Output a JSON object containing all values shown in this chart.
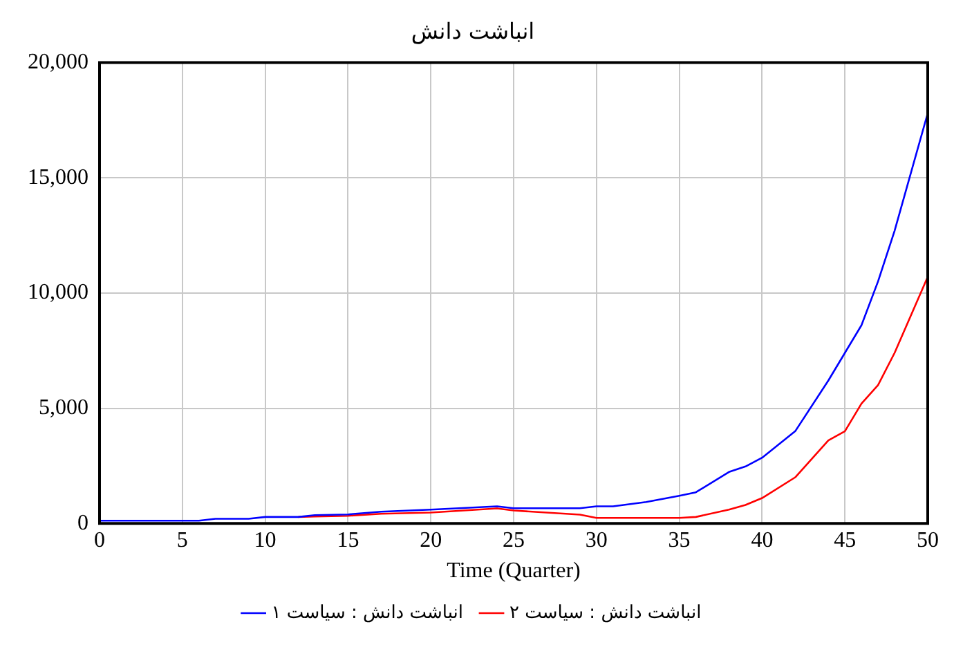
{
  "chart_data": {
    "type": "line",
    "title": "انباشت دانش",
    "xlabel": "Time (Quarter)",
    "x": [
      0,
      6,
      7,
      9,
      10,
      12,
      13,
      15,
      17,
      20,
      24,
      25,
      29,
      30,
      31,
      33,
      35,
      36,
      38,
      39,
      40,
      42,
      44,
      45,
      46,
      47,
      48,
      50
    ],
    "series": [
      {
        "name": "انباشت دانش : سیاست ۱",
        "color": "#0000ff",
        "values": [
          120,
          120,
          200,
          200,
          280,
          280,
          360,
          390,
          510,
          600,
          740,
          660,
          660,
          740,
          740,
          930,
          1200,
          1350,
          2230,
          2470,
          2850,
          4000,
          6200,
          7400,
          8600,
          10500,
          12700,
          17800
        ]
      },
      {
        "name": "انباشت دانش : سیاست ۲",
        "color": "#ff0000",
        "values": [
          null,
          null,
          null,
          null,
          null,
          280,
          300,
          330,
          420,
          470,
          650,
          560,
          380,
          240,
          240,
          240,
          240,
          280,
          600,
          800,
          1100,
          2000,
          3600,
          4000,
          5200,
          6000,
          7400,
          10700
        ]
      }
    ],
    "xlim": [
      0,
      50
    ],
    "xticks": [
      0,
      5,
      10,
      15,
      20,
      25,
      30,
      35,
      40,
      45,
      50
    ],
    "ylim": [
      0,
      20000
    ],
    "yticks": [
      {
        "value": 0,
        "label": "0"
      },
      {
        "value": 5000,
        "label": "5,000"
      },
      {
        "value": 10000,
        "label": "10,000"
      },
      {
        "value": 15000,
        "label": "15,000"
      },
      {
        "value": 20000,
        "label": "20,000"
      }
    ],
    "grid": true,
    "legend": "bottom",
    "marker": "none",
    "line_style": "solid"
  }
}
